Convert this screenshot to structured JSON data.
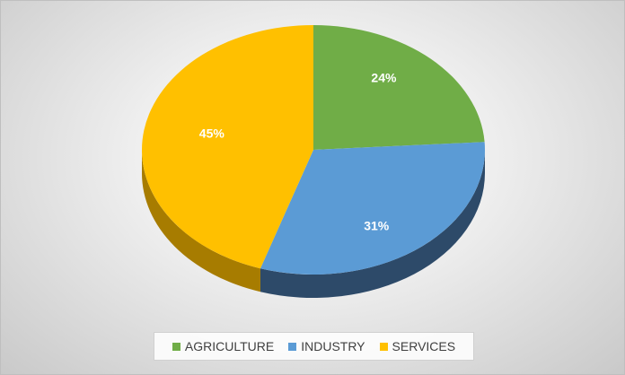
{
  "chart_data": {
    "type": "pie",
    "categories": [
      "AGRICULTURE",
      "INDUSTRY",
      "SERVICES"
    ],
    "values": [
      24,
      31,
      45
    ],
    "value_labels": [
      "24%",
      "31%",
      "45%"
    ],
    "colors": [
      "#70ad47",
      "#5b9bd5",
      "#ffc000"
    ],
    "side_colors": [
      "#4a7a2c",
      "#2d4a69",
      "#a77c00"
    ],
    "legend": "bottom"
  }
}
